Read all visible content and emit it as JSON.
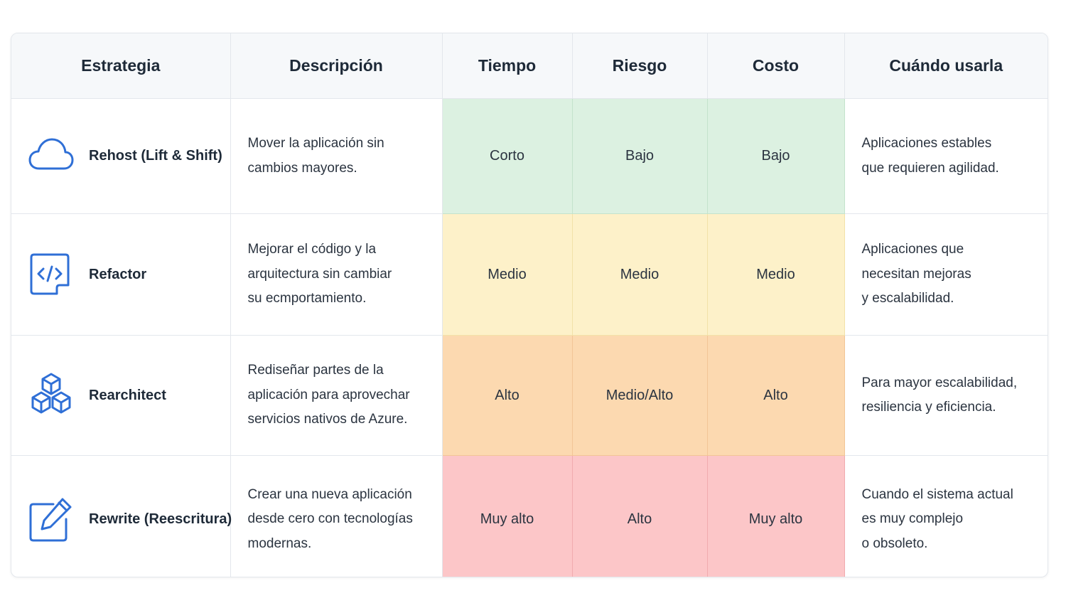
{
  "headers": [
    "Estrategia",
    "Descripción",
    "Tiempo",
    "Riesgo",
    "Costo",
    "Cuándo usarla"
  ],
  "colors": {
    "icon": "#2f6fd6",
    "low": "#dcf1e1",
    "medium": "#fdf1c9",
    "high": "#fcd9b0",
    "very_high": "#fcc6c8"
  },
  "rows": [
    {
      "icon": "cloud-icon",
      "strategy": "Rehost (Lift & Shift)",
      "description": [
        "Mover la aplicación sin",
        "cambios mayores."
      ],
      "tiempo": "Corto",
      "riesgo": "Bajo",
      "costo": "Bajo",
      "cuando": [
        "Aplicaciones estables",
        "que requieren agilidad."
      ]
    },
    {
      "icon": "code-icon",
      "strategy": "Refactor",
      "description": [
        "Mejorar el código y la",
        "arquitectura sin cambiar",
        "su ecmportamiento."
      ],
      "tiempo": "Medio",
      "riesgo": "Medio",
      "costo": "Medio",
      "cuando": [
        "Aplicaciones que",
        "necesitan mejoras",
        "y escalabilidad."
      ]
    },
    {
      "icon": "cubes-icon",
      "strategy": "Rearchitect",
      "description": [
        "Rediseñar partes de la",
        "aplicación para aprovechar",
        "servicios nativos de Azure."
      ],
      "tiempo": "Alto",
      "riesgo": "Medio/Alto",
      "costo": "Alto",
      "cuando": [
        "Para mayor escalabilidad,",
        "resiliencia y eficiencia."
      ]
    },
    {
      "icon": "edit-icon",
      "strategy": "Rewrite (Reescritura)",
      "description": [
        "Crear una nueva aplicación",
        "desde cero con tecnologías",
        "modernas."
      ],
      "tiempo": "Muy alto",
      "riesgo": "Alto",
      "costo": "Muy alto",
      "cuando": [
        "Cuando el sistema actual",
        "es muy complejo",
        "o obsoleto."
      ]
    }
  ]
}
